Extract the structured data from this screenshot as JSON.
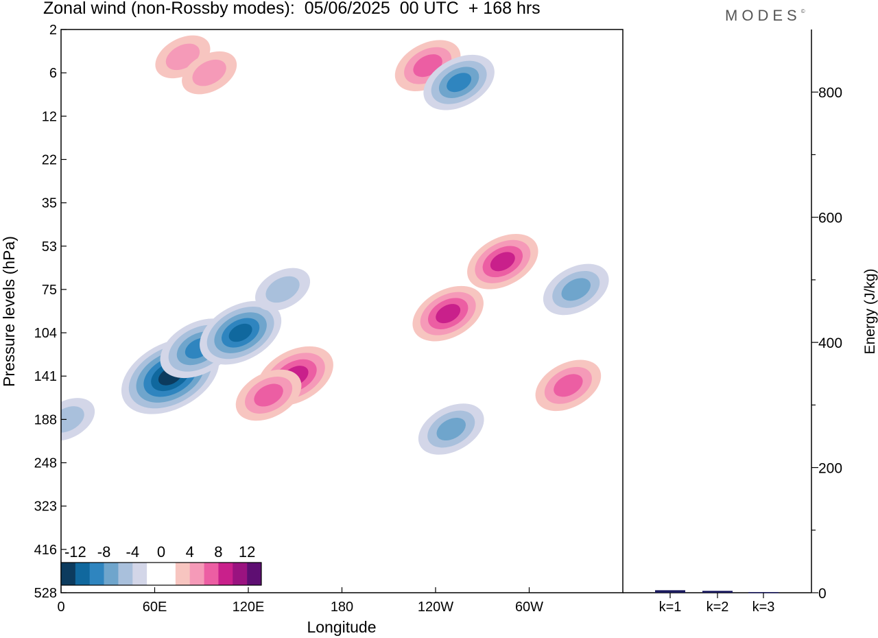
{
  "title": "Zonal wind (non-Rossby modes):  05/06/2025  00 UTC  + 168 hrs",
  "logo": "MODES",
  "logo_mark": "©",
  "colors": {
    "negative": [
      "#0c3b5e",
      "#10689e",
      "#2f85bf",
      "#6fa5cc",
      "#a9c0dc",
      "#d3d6e8"
    ],
    "positive": [
      "#f7c5c0",
      "#f59ab8",
      "#ec5ea3",
      "#c9208b",
      "#9a1380",
      "#5e0e72"
    ]
  },
  "chart_data": [
    {
      "type": "heatmap",
      "subtype": "filled-contour",
      "xlabel": "Longitude",
      "ylabel": "Pressure levels (hPa)",
      "x_ticks": [
        "0",
        "60E",
        "120E",
        "180",
        "120W",
        "60W"
      ],
      "x_tick_values": [
        0,
        60,
        120,
        180,
        240,
        300
      ],
      "xlim": [
        0,
        360
      ],
      "y_ticks": [
        "2",
        "6",
        "12",
        "22",
        "35",
        "53",
        "75",
        "104",
        "141",
        "188",
        "248",
        "323",
        "416",
        "528"
      ],
      "y_scale": "categorical pressure levels",
      "colorbar": {
        "tick_labels": [
          "-12",
          "-8",
          "-4",
          "0",
          "4",
          "8",
          "12"
        ],
        "levels": [
          -14,
          -12,
          -10,
          -8,
          -6,
          -4,
          -2,
          2,
          4,
          6,
          8,
          10,
          12,
          14
        ],
        "placement": "bottom-left"
      },
      "features": [
        {
          "lon": 70,
          "level": "141",
          "value": -13
        },
        {
          "lon": 88,
          "level": "116",
          "value": -9
        },
        {
          "lon": 115,
          "level": "104",
          "value": -10
        },
        {
          "lon": 142,
          "level": "75",
          "value": -5
        },
        {
          "lon": 4,
          "level": "188",
          "value": -5
        },
        {
          "lon": 250,
          "level": "200",
          "value": -7
        },
        {
          "lon": 330,
          "level": "75",
          "value": -7
        },
        {
          "lon": 150,
          "level": "141",
          "value": 9
        },
        {
          "lon": 133,
          "level": "160",
          "value": 7
        },
        {
          "lon": 248,
          "level": "90",
          "value": 8
        },
        {
          "lon": 283,
          "level": "60",
          "value": 8
        },
        {
          "lon": 325,
          "level": "150",
          "value": 7
        },
        {
          "lon": 235,
          "level": "5",
          "value": 7
        },
        {
          "lon": 255,
          "level": "7",
          "value": -8
        },
        {
          "lon": 78,
          "level": "4",
          "value": 5
        },
        {
          "lon": 95,
          "level": "6",
          "value": 5
        }
      ]
    },
    {
      "type": "bar",
      "categories": [
        "k=1",
        "k=2",
        "k=3"
      ],
      "values": [
        4,
        3,
        1
      ],
      "ylabel": "Energy (J/kg)",
      "y_ticks": [
        0,
        200,
        400,
        600,
        800
      ],
      "ylim": [
        0,
        900
      ]
    }
  ]
}
